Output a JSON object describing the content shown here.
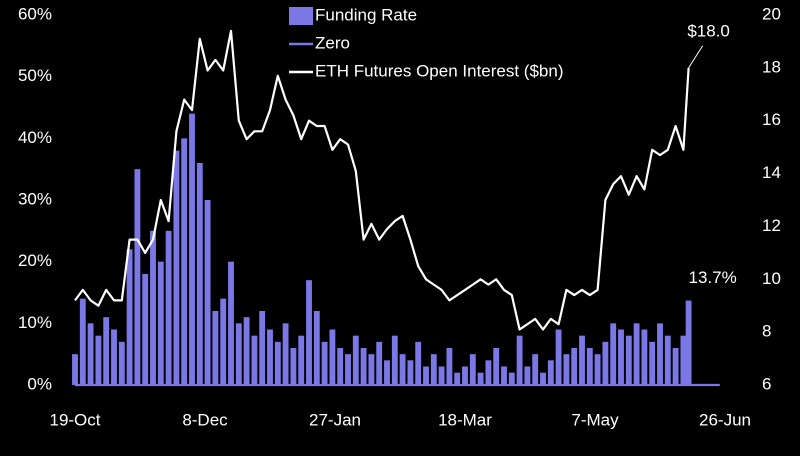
{
  "chart_data": {
    "type": "combo",
    "x": [
      0,
      3,
      6,
      9,
      12,
      15,
      18,
      21,
      24,
      27,
      30,
      33,
      36,
      39,
      42,
      45,
      48,
      51,
      54,
      57,
      60,
      63,
      66,
      69,
      72,
      75,
      78,
      81,
      84,
      87,
      90,
      93,
      96,
      99,
      102,
      105,
      108,
      111,
      114,
      117,
      120,
      123,
      126,
      129,
      132,
      135,
      138,
      141,
      144,
      147,
      150,
      153,
      156,
      159,
      162,
      165,
      168,
      171,
      174,
      177,
      180,
      183,
      186,
      189,
      192,
      195,
      198,
      201,
      204,
      207,
      210,
      213,
      216,
      219,
      222,
      225,
      228,
      231,
      234,
      236
    ],
    "xlim": [
      0,
      250
    ],
    "xticks": [
      {
        "value": 0,
        "label": "19-Oct"
      },
      {
        "value": 50,
        "label": "8-Dec"
      },
      {
        "value": 100,
        "label": "27-Jan"
      },
      {
        "value": 150,
        "label": "18-Mar"
      },
      {
        "value": 200,
        "label": "7-May"
      },
      {
        "value": 250,
        "label": "26-Jun"
      }
    ],
    "ylim": [
      0,
      60
    ],
    "yticks": [
      {
        "value": 0,
        "label": "0%"
      },
      {
        "value": 10,
        "label": "10%"
      },
      {
        "value": 20,
        "label": "20%"
      },
      {
        "value": 30,
        "label": "30%"
      },
      {
        "value": 40,
        "label": "40%"
      },
      {
        "value": 50,
        "label": "50%"
      },
      {
        "value": 60,
        "label": "60%"
      }
    ],
    "y2lim": [
      6,
      20
    ],
    "y2ticks": [
      6,
      8,
      10,
      12,
      14,
      16,
      18,
      20
    ],
    "series": [
      {
        "name": "Funding Rate",
        "type": "bar",
        "axis": "y",
        "color": "#7b78e6",
        "values": [
          5,
          14,
          10,
          8,
          11,
          9,
          7,
          22,
          35,
          18,
          25,
          20,
          25,
          38,
          40,
          44,
          36,
          30,
          12,
          14,
          20,
          10,
          11,
          8,
          12,
          9,
          7,
          10,
          6,
          8,
          17,
          12,
          7,
          9,
          6,
          5,
          8,
          6,
          5,
          7,
          4,
          8,
          5,
          4,
          7,
          3,
          5,
          3,
          6,
          2,
          3,
          5,
          2,
          4,
          6,
          3,
          2,
          8,
          3,
          5,
          2,
          4,
          9,
          5,
          6,
          8,
          6,
          5,
          7,
          10,
          9,
          8,
          10,
          9,
          7,
          10,
          8,
          6,
          8,
          13.7
        ]
      },
      {
        "name": "Zero",
        "type": "line",
        "axis": "y",
        "color": "#7b78e6",
        "x": [
          0,
          248
        ],
        "values": [
          0,
          0
        ]
      },
      {
        "name": "ETH Futures Open Interest ($bn)",
        "type": "line",
        "axis": "y2",
        "color": "#ffffff",
        "values": [
          9.2,
          9.6,
          9.2,
          9.0,
          9.6,
          9.2,
          9.2,
          11.5,
          11.5,
          11.0,
          11.5,
          13.0,
          12.2,
          15.6,
          16.8,
          16.4,
          19.1,
          17.9,
          18.3,
          17.9,
          19.4,
          16.0,
          15.3,
          15.6,
          15.6,
          16.4,
          17.7,
          16.8,
          16.2,
          15.3,
          16.0,
          15.8,
          15.8,
          14.9,
          15.3,
          15.1,
          14.1,
          11.5,
          12.1,
          11.5,
          11.9,
          12.2,
          12.4,
          11.5,
          10.5,
          10.0,
          9.8,
          9.6,
          9.2,
          9.4,
          9.6,
          9.8,
          10.0,
          9.8,
          10.0,
          9.6,
          9.4,
          8.1,
          8.3,
          8.5,
          8.1,
          8.5,
          8.3,
          9.6,
          9.4,
          9.6,
          9.4,
          9.6,
          13.0,
          13.6,
          13.9,
          13.2,
          13.9,
          13.4,
          14.9,
          14.7,
          14.9,
          15.8,
          14.9,
          18.0
        ]
      }
    ],
    "annotations": [
      "$18.0",
      "13.7%"
    ]
  }
}
